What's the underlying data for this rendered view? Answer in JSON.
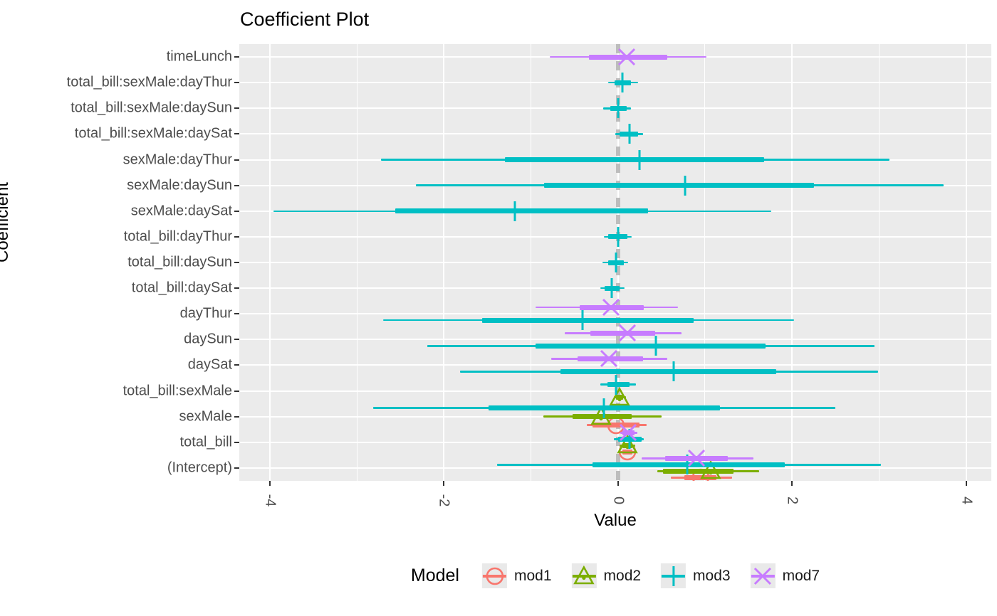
{
  "page": {
    "title": "Coefficient Plot",
    "xlabel": "Value",
    "ylabel": "Coefficient",
    "legend_title": "Model"
  },
  "chart_data": {
    "type": "pointrange_coefficient_plot",
    "title": "Coefficient Plot",
    "xlabel": "Value",
    "ylabel": "Coefficient",
    "xlim": [
      -4.35,
      4.29
    ],
    "x_major_ticks": [
      -4,
      -2,
      0,
      2,
      4
    ],
    "x_minor_gridlines": [
      -3,
      -1,
      1,
      3
    ],
    "zero_line": {
      "x": 0,
      "style": "dashed",
      "color": "#BDBDBD"
    },
    "panel_background": "#EBEBEB",
    "gridline_color": "#FFFFFF",
    "axis_text_color": "#4D4D4D",
    "categories_top_to_bottom": [
      "timeLunch",
      "total_bill:sexMale:dayThur",
      "total_bill:sexMale:daySun",
      "total_bill:sexMale:daySat",
      "sexMale:dayThur",
      "sexMale:daySun",
      "sexMale:daySat",
      "total_bill:dayThur",
      "total_bill:daySun",
      "total_bill:daySat",
      "dayThur",
      "daySun",
      "daySat",
      "total_bill:sexMale",
      "sexMale",
      "total_bill",
      "(Intercept)"
    ],
    "dodge_order_top_to_bottom": [
      "mod7",
      "mod3",
      "mod2",
      "mod1"
    ],
    "legend": {
      "title": "Model",
      "position": "bottom",
      "entries": [
        {
          "label": "mod1",
          "color": "#F8766D",
          "shape": "circle"
        },
        {
          "label": "mod2",
          "color": "#7CAE00",
          "shape": "triangle"
        },
        {
          "label": "mod3",
          "color": "#00BFC4",
          "shape": "vline"
        },
        {
          "label": "mod7",
          "color": "#C77CFF",
          "shape": "x"
        }
      ]
    },
    "series": [
      {
        "name": "mod1",
        "color": "#F8766D",
        "shape": "circle",
        "points": [
          {
            "term": "sexMale",
            "estimate": -0.02,
            "inner": [
              -0.29,
              0.25
            ],
            "outer": [
              -0.36,
              0.33
            ]
          },
          {
            "term": "total_bill",
            "estimate": 0.11,
            "inner": [
              0.05,
              0.17
            ],
            "outer": [
              0.02,
              0.2
            ]
          },
          {
            "term": "(Intercept)",
            "estimate": 0.95,
            "inner": [
              0.76,
              1.13
            ],
            "outer": [
              0.61,
              1.31
            ]
          }
        ]
      },
      {
        "name": "mod2",
        "color": "#7CAE00",
        "shape": "triangle",
        "points": [
          {
            "term": "total_bill:sexMale",
            "estimate": 0.02,
            "inner": [
              -0.02,
              0.06
            ],
            "outer": [
              -0.05,
              0.09
            ]
          },
          {
            "term": "sexMale",
            "estimate": -0.19,
            "inner": [
              -0.52,
              0.16
            ],
            "outer": [
              -0.86,
              0.5
            ]
          },
          {
            "term": "total_bill",
            "estimate": 0.11,
            "inner": [
              0.05,
              0.17
            ],
            "outer": [
              0.02,
              0.2
            ]
          },
          {
            "term": "(Intercept)",
            "estimate": 1.07,
            "inner": [
              0.52,
              1.33
            ],
            "outer": [
              0.45,
              1.62
            ]
          }
        ]
      },
      {
        "name": "mod3",
        "color": "#00BFC4",
        "shape": "vline",
        "points": [
          {
            "term": "total_bill:sexMale:dayThur",
            "estimate": 0.05,
            "inner": [
              -0.04,
              0.15
            ],
            "outer": [
              -0.11,
              0.23
            ]
          },
          {
            "term": "total_bill:sexMale:daySun",
            "estimate": 0.0,
            "inner": [
              -0.09,
              0.1
            ],
            "outer": [
              -0.17,
              0.15
            ]
          },
          {
            "term": "total_bill:sexMale:daySat",
            "estimate": 0.13,
            "inner": [
              0.02,
              0.23
            ],
            "outer": [
              -0.03,
              0.29
            ]
          },
          {
            "term": "sexMale:dayThur",
            "estimate": 0.25,
            "inner": [
              -1.3,
              1.68
            ],
            "outer": [
              -2.72,
              3.12
            ]
          },
          {
            "term": "sexMale:daySun",
            "estimate": 0.77,
            "inner": [
              -0.85,
              2.25
            ],
            "outer": [
              -2.32,
              3.74
            ]
          },
          {
            "term": "sexMale:daySat",
            "estimate": -1.18,
            "inner": [
              -2.56,
              0.35
            ],
            "outer": [
              -3.96,
              1.76
            ]
          },
          {
            "term": "total_bill:dayThur",
            "estimate": 0.0,
            "inner": [
              -0.11,
              0.11
            ],
            "outer": [
              -0.16,
              0.16
            ]
          },
          {
            "term": "total_bill:daySun",
            "estimate": -0.02,
            "inner": [
              -0.11,
              0.07
            ],
            "outer": [
              -0.18,
              0.12
            ]
          },
          {
            "term": "total_bill:daySat",
            "estimate": -0.07,
            "inner": [
              -0.15,
              0.02
            ],
            "outer": [
              -0.2,
              0.08
            ]
          },
          {
            "term": "dayThur",
            "estimate": -0.41,
            "inner": [
              -1.56,
              0.87
            ],
            "outer": [
              -2.7,
              2.02
            ]
          },
          {
            "term": "daySun",
            "estimate": 0.44,
            "inner": [
              -0.95,
              1.7
            ],
            "outer": [
              -2.19,
              2.95
            ]
          },
          {
            "term": "daySat",
            "estimate": 0.64,
            "inner": [
              -0.66,
              1.82
            ],
            "outer": [
              -1.81,
              2.99
            ]
          },
          {
            "term": "total_bill:sexMale",
            "estimate": -0.02,
            "inner": [
              -0.12,
              0.13
            ],
            "outer": [
              -0.2,
              0.21
            ]
          },
          {
            "term": "sexMale",
            "estimate": -0.16,
            "inner": [
              -1.49,
              1.17
            ],
            "outer": [
              -2.81,
              2.5
            ]
          },
          {
            "term": "total_bill",
            "estimate": 0.13,
            "inner": [
              0.0,
              0.27
            ],
            "outer": [
              -0.05,
              0.3
            ]
          },
          {
            "term": "(Intercept)",
            "estimate": 0.8,
            "inner": [
              -0.29,
              1.92
            ],
            "outer": [
              -1.39,
              3.02
            ]
          }
        ]
      },
      {
        "name": "mod7",
        "color": "#C77CFF",
        "shape": "x",
        "points": [
          {
            "term": "timeLunch",
            "estimate": 0.1,
            "inner": [
              -0.33,
              0.57
            ],
            "outer": [
              -0.78,
              1.02
            ]
          },
          {
            "term": "dayThur",
            "estimate": -0.08,
            "inner": [
              -0.44,
              0.3
            ],
            "outer": [
              -0.95,
              0.69
            ]
          },
          {
            "term": "daySun",
            "estimate": 0.11,
            "inner": [
              -0.32,
              0.43
            ],
            "outer": [
              -0.61,
              0.73
            ]
          },
          {
            "term": "daySat",
            "estimate": -0.1,
            "inner": [
              -0.46,
              0.29
            ],
            "outer": [
              -0.77,
              0.57
            ]
          },
          {
            "term": "total_bill",
            "estimate": 0.12,
            "inner": [
              0.05,
              0.19
            ],
            "outer": [
              0.03,
              0.22
            ]
          },
          {
            "term": "(Intercept)",
            "estimate": 0.9,
            "inner": [
              0.54,
              1.26
            ],
            "outer": [
              0.27,
              1.56
            ]
          }
        ]
      }
    ]
  }
}
